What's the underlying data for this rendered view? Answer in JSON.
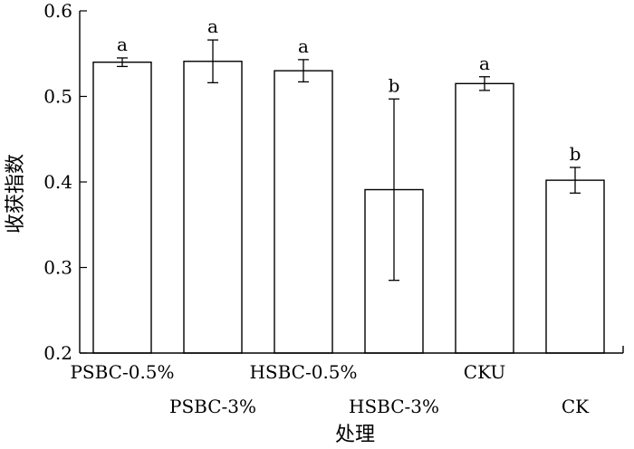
{
  "chart_data": {
    "type": "bar",
    "title": "",
    "xlabel": "处理",
    "ylabel": "收获指数",
    "ylim": [
      0.2,
      0.6
    ],
    "yticks": [
      0.2,
      0.3,
      0.4,
      0.5,
      0.6
    ],
    "ytick_labels": [
      "0.2",
      "0.3",
      "0.4",
      "0.5",
      "0.6"
    ],
    "grid": false,
    "categories": [
      "PSBC-0.5%",
      "PSBC-3%",
      "HSBC-0.5%",
      "HSBC-3%",
      "CKU",
      "CK"
    ],
    "values": [
      0.54,
      0.541,
      0.53,
      0.391,
      0.515,
      0.402
    ],
    "error": [
      0.005,
      0.025,
      0.013,
      0.106,
      0.008,
      0.015
    ],
    "significance": [
      "a",
      "a",
      "a",
      "b",
      "a",
      "b"
    ]
  }
}
